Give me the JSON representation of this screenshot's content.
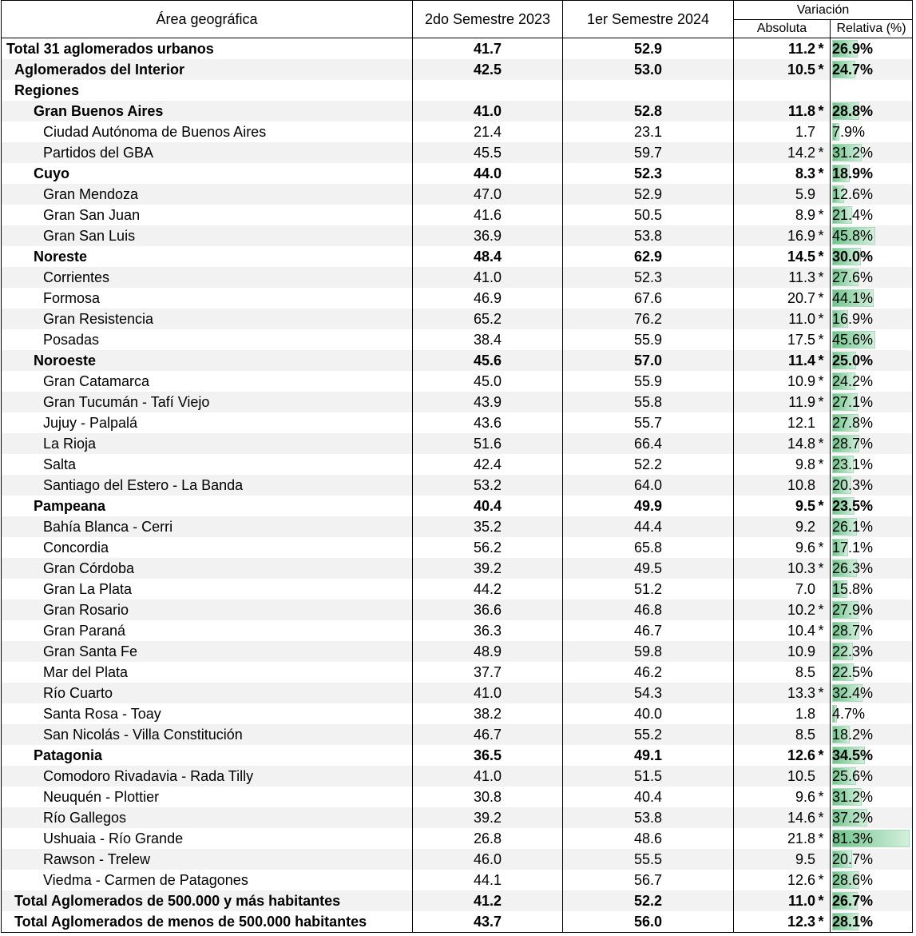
{
  "headers": {
    "area": "Área geográfica",
    "s1": "2do Semestre 2023",
    "s2": "1er Semestre 2024",
    "variacion": "Variación",
    "absoluta": "Absoluta",
    "relativa": "Relativa (%)"
  },
  "bar_color": "#6cc48a",
  "rows": [
    {
      "name": "Total 31 aglomerados urbanos",
      "level": 0,
      "bold": true,
      "v1": "41.7",
      "v2": "52.9",
      "abs": "11.2",
      "star": "*",
      "rel": "26.9%",
      "rel_value": 26.9
    },
    {
      "name": "Aglomerados del Interior",
      "level": 1,
      "bold": true,
      "v1": "42.5",
      "v2": "53.0",
      "abs": "10.5",
      "star": "*",
      "rel": "24.7%",
      "rel_value": 24.7
    },
    {
      "name": "Regiones",
      "level": 1,
      "bold": true,
      "v1": "",
      "v2": "",
      "abs": "",
      "star": "",
      "rel": "",
      "rel_value": null
    },
    {
      "name": "Gran Buenos Aires",
      "level": 2,
      "bold": true,
      "v1": "41.0",
      "v2": "52.8",
      "abs": "11.8",
      "star": "*",
      "rel": "28.8%",
      "rel_value": 28.8
    },
    {
      "name": "Ciudad Autónoma de Buenos Aires",
      "level": 3,
      "bold": false,
      "v1": "21.4",
      "v2": "23.1",
      "abs": "1.7",
      "star": "",
      "rel": "7.9%",
      "rel_value": 7.9
    },
    {
      "name": "Partidos del GBA",
      "level": 3,
      "bold": false,
      "v1": "45.5",
      "v2": "59.7",
      "abs": "14.2",
      "star": "*",
      "rel": "31.2%",
      "rel_value": 31.2
    },
    {
      "name": "Cuyo",
      "level": 2,
      "bold": true,
      "v1": "44.0",
      "v2": "52.3",
      "abs": "8.3",
      "star": "*",
      "rel": "18.9%",
      "rel_value": 18.9
    },
    {
      "name": "Gran Mendoza",
      "level": 3,
      "bold": false,
      "v1": "47.0",
      "v2": "52.9",
      "abs": "5.9",
      "star": "",
      "rel": "12.6%",
      "rel_value": 12.6
    },
    {
      "name": "Gran San Juan",
      "level": 3,
      "bold": false,
      "v1": "41.6",
      "v2": "50.5",
      "abs": "8.9",
      "star": "*",
      "rel": "21.4%",
      "rel_value": 21.4
    },
    {
      "name": "Gran San Luis",
      "level": 3,
      "bold": false,
      "v1": "36.9",
      "v2": "53.8",
      "abs": "16.9",
      "star": "*",
      "rel": "45.8%",
      "rel_value": 45.8
    },
    {
      "name": "Noreste",
      "level": 2,
      "bold": true,
      "v1": "48.4",
      "v2": "62.9",
      "abs": "14.5",
      "star": "*",
      "rel": "30.0%",
      "rel_value": 30.0
    },
    {
      "name": "Corrientes",
      "level": 3,
      "bold": false,
      "v1": "41.0",
      "v2": "52.3",
      "abs": "11.3",
      "star": "*",
      "rel": "27.6%",
      "rel_value": 27.6
    },
    {
      "name": "Formosa",
      "level": 3,
      "bold": false,
      "v1": "46.9",
      "v2": "67.6",
      "abs": "20.7",
      "star": "*",
      "rel": "44.1%",
      "rel_value": 44.1
    },
    {
      "name": "Gran Resistencia",
      "level": 3,
      "bold": false,
      "v1": "65.2",
      "v2": "76.2",
      "abs": "11.0",
      "star": "*",
      "rel": "16.9%",
      "rel_value": 16.9
    },
    {
      "name": "Posadas",
      "level": 3,
      "bold": false,
      "v1": "38.4",
      "v2": "55.9",
      "abs": "17.5",
      "star": "*",
      "rel": "45.6%",
      "rel_value": 45.6
    },
    {
      "name": "Noroeste",
      "level": 2,
      "bold": true,
      "v1": "45.6",
      "v2": "57.0",
      "abs": "11.4",
      "star": "*",
      "rel": "25.0%",
      "rel_value": 25.0
    },
    {
      "name": "Gran Catamarca",
      "level": 3,
      "bold": false,
      "v1": "45.0",
      "v2": "55.9",
      "abs": "10.9",
      "star": "*",
      "rel": "24.2%",
      "rel_value": 24.2
    },
    {
      "name": "Gran Tucumán - Tafí Viejo",
      "level": 3,
      "bold": false,
      "v1": "43.9",
      "v2": "55.8",
      "abs": "11.9",
      "star": "*",
      "rel": "27.1%",
      "rel_value": 27.1
    },
    {
      "name": "Jujuy - Palpalá",
      "level": 3,
      "bold": false,
      "v1": "43.6",
      "v2": "55.7",
      "abs": "12.1",
      "star": "",
      "rel": "27.8%",
      "rel_value": 27.8
    },
    {
      "name": "La Rioja",
      "level": 3,
      "bold": false,
      "v1": "51.6",
      "v2": "66.4",
      "abs": "14.8",
      "star": "*",
      "rel": "28.7%",
      "rel_value": 28.7
    },
    {
      "name": "Salta",
      "level": 3,
      "bold": false,
      "v1": "42.4",
      "v2": "52.2",
      "abs": "9.8",
      "star": "*",
      "rel": "23.1%",
      "rel_value": 23.1
    },
    {
      "name": "Santiago del Estero - La Banda",
      "level": 3,
      "bold": false,
      "v1": "53.2",
      "v2": "64.0",
      "abs": "10.8",
      "star": "",
      "rel": "20.3%",
      "rel_value": 20.3
    },
    {
      "name": "Pampeana",
      "level": 2,
      "bold": true,
      "v1": "40.4",
      "v2": "49.9",
      "abs": "9.5",
      "star": "*",
      "rel": "23.5%",
      "rel_value": 23.5
    },
    {
      "name": "Bahía Blanca - Cerri",
      "level": 3,
      "bold": false,
      "v1": "35.2",
      "v2": "44.4",
      "abs": "9.2",
      "star": "",
      "rel": "26.1%",
      "rel_value": 26.1
    },
    {
      "name": "Concordia",
      "level": 3,
      "bold": false,
      "v1": "56.2",
      "v2": "65.8",
      "abs": "9.6",
      "star": "*",
      "rel": "17.1%",
      "rel_value": 17.1
    },
    {
      "name": "Gran Córdoba",
      "level": 3,
      "bold": false,
      "v1": "39.2",
      "v2": "49.5",
      "abs": "10.3",
      "star": "*",
      "rel": "26.3%",
      "rel_value": 26.3
    },
    {
      "name": "Gran La Plata",
      "level": 3,
      "bold": false,
      "v1": "44.2",
      "v2": "51.2",
      "abs": "7.0",
      "star": "",
      "rel": "15.8%",
      "rel_value": 15.8
    },
    {
      "name": "Gran Rosario",
      "level": 3,
      "bold": false,
      "v1": "36.6",
      "v2": "46.8",
      "abs": "10.2",
      "star": "*",
      "rel": "27.9%",
      "rel_value": 27.9
    },
    {
      "name": "Gran Paraná",
      "level": 3,
      "bold": false,
      "v1": "36.3",
      "v2": "46.7",
      "abs": "10.4",
      "star": "*",
      "rel": "28.7%",
      "rel_value": 28.7
    },
    {
      "name": "Gran Santa Fe",
      "level": 3,
      "bold": false,
      "v1": "48.9",
      "v2": "59.8",
      "abs": "10.9",
      "star": "",
      "rel": "22.3%",
      "rel_value": 22.3
    },
    {
      "name": "Mar del Plata",
      "level": 3,
      "bold": false,
      "v1": "37.7",
      "v2": "46.2",
      "abs": "8.5",
      "star": "",
      "rel": "22.5%",
      "rel_value": 22.5
    },
    {
      "name": "Río Cuarto",
      "level": 3,
      "bold": false,
      "v1": "41.0",
      "v2": "54.3",
      "abs": "13.3",
      "star": "*",
      "rel": "32.4%",
      "rel_value": 32.4
    },
    {
      "name": "Santa Rosa - Toay",
      "level": 3,
      "bold": false,
      "v1": "38.2",
      "v2": "40.0",
      "abs": "1.8",
      "star": "",
      "rel": "4.7%",
      "rel_value": 4.7
    },
    {
      "name": "San Nicolás - Villa Constitución",
      "level": 3,
      "bold": false,
      "v1": "46.7",
      "v2": "55.2",
      "abs": "8.5",
      "star": "",
      "rel": "18.2%",
      "rel_value": 18.2
    },
    {
      "name": "Patagonia",
      "level": 2,
      "bold": true,
      "v1": "36.5",
      "v2": "49.1",
      "abs": "12.6",
      "star": "*",
      "rel": "34.5%",
      "rel_value": 34.5
    },
    {
      "name": "Comodoro Rivadavia - Rada Tilly",
      "level": 3,
      "bold": false,
      "v1": "41.0",
      "v2": "51.5",
      "abs": "10.5",
      "star": "",
      "rel": "25.6%",
      "rel_value": 25.6
    },
    {
      "name": "Neuquén - Plottier",
      "level": 3,
      "bold": false,
      "v1": "30.8",
      "v2": "40.4",
      "abs": "9.6",
      "star": "*",
      "rel": "31.2%",
      "rel_value": 31.2
    },
    {
      "name": "Río Gallegos",
      "level": 3,
      "bold": false,
      "v1": "39.2",
      "v2": "53.8",
      "abs": "14.6",
      "star": "*",
      "rel": "37.2%",
      "rel_value": 37.2
    },
    {
      "name": "Ushuaia - Río Grande",
      "level": 3,
      "bold": false,
      "v1": "26.8",
      "v2": "48.6",
      "abs": "21.8",
      "star": "*",
      "rel": "81.3%",
      "rel_value": 81.3
    },
    {
      "name": "Rawson - Trelew",
      "level": 3,
      "bold": false,
      "v1": "46.0",
      "v2": "55.5",
      "abs": "9.5",
      "star": "",
      "rel": "20.7%",
      "rel_value": 20.7
    },
    {
      "name": "Viedma - Carmen de Patagones",
      "level": 3,
      "bold": false,
      "v1": "44.1",
      "v2": "56.7",
      "abs": "12.6",
      "star": "*",
      "rel": "28.6%",
      "rel_value": 28.6
    },
    {
      "name": "Total Aglomerados de 500.000 y más habitantes",
      "level": 1,
      "bold": true,
      "v1": "41.2",
      "v2": "52.2",
      "abs": "11.0",
      "star": "*",
      "rel": "26.7%",
      "rel_value": 26.7
    },
    {
      "name": "Total Aglomerados de menos de 500.000 habitantes",
      "level": 1,
      "bold": true,
      "v1": "43.7",
      "v2": "56.0",
      "abs": "12.3",
      "star": "*",
      "rel": "28.1%",
      "rel_value": 28.1
    }
  ]
}
